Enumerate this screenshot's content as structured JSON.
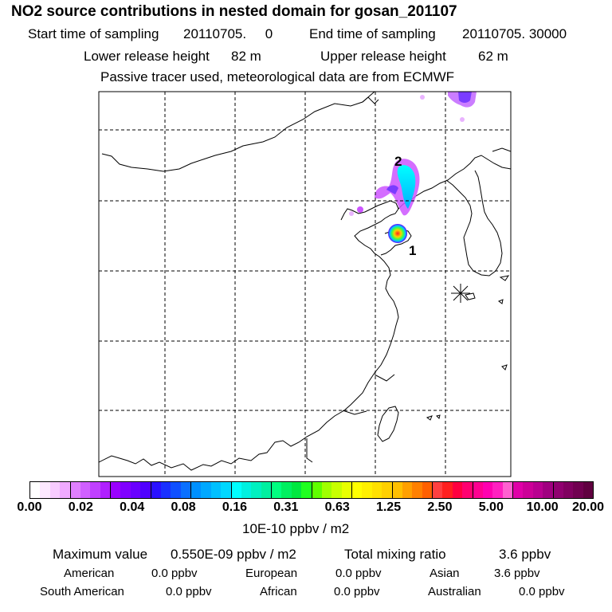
{
  "title": "NO2 source contributions in nested domain for gosan_201107",
  "header": {
    "start_label": "Start time of sampling",
    "start_value": "20110705.     0",
    "end_label": "End time of sampling",
    "end_value": "20110705. 30000",
    "lower_label": "Lower release height",
    "lower_value": "82 m",
    "upper_label": "Upper release height",
    "upper_value": "62 m",
    "note": "Passive tracer used, meteorological data are from ECMWF"
  },
  "map": {
    "source_labels": [
      "2",
      "1"
    ],
    "receptor_marker": "receptor-star-icon"
  },
  "colorbar": {
    "tick_labels": [
      "0.00",
      "0.02",
      "0.04",
      "0.08",
      "0.16",
      "0.31",
      "0.63",
      "1.25",
      "2.50",
      "5.00",
      "10.00",
      "20.00"
    ],
    "units": "10E-10 ppbv / m2",
    "colors": [
      "#ffffff",
      "#fde8ff",
      "#f8ccff",
      "#f0aaff",
      "#e080ff",
      "#d060ff",
      "#c040ff",
      "#b020ff",
      "#9a00ff",
      "#8000ff",
      "#6a00ff",
      "#5000ff",
      "#2a10ff",
      "#1a30ff",
      "#1050ff",
      "#0a70ff",
      "#0090ff",
      "#00a8ff",
      "#00c0ff",
      "#00d8ff",
      "#00ffff",
      "#00f0e0",
      "#00f0c0",
      "#00f0a0",
      "#00ff80",
      "#00f060",
      "#00e840",
      "#20ff20",
      "#60ff00",
      "#a0ff00",
      "#c8ff00",
      "#e8ff00",
      "#ffff00",
      "#fff000",
      "#ffe000",
      "#ffd000",
      "#ffc000",
      "#ffa000",
      "#ff8000",
      "#ff6000",
      "#ff4040",
      "#ff2020",
      "#ff0040",
      "#ff0070",
      "#ff0090",
      "#ff00b0",
      "#ff20c0",
      "#ff60d0",
      "#e000a8",
      "#cc0098",
      "#b80090",
      "#a00080",
      "#900070",
      "#800060",
      "#700050",
      "#600040"
    ]
  },
  "summary": {
    "max_label": "Maximum value",
    "max_value": "0.550E-09 ppbv / m2",
    "total_label": "Total mixing ratio",
    "total_value": "3.6 ppbv",
    "regions": [
      {
        "name": "American",
        "value": "0.0 ppbv"
      },
      {
        "name": "European",
        "value": "0.0 ppbv"
      },
      {
        "name": "Asian",
        "value": "3.6 ppbv"
      },
      {
        "name": "South American",
        "value": "0.0 ppbv"
      },
      {
        "name": "African",
        "value": "0.0 ppbv"
      },
      {
        "name": "Australian",
        "value": "0.0 ppbv"
      }
    ]
  }
}
